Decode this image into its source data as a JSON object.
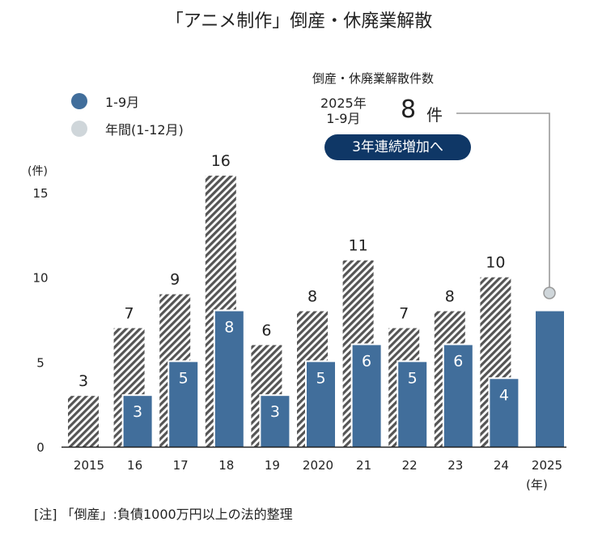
{
  "title": "「アニメ制作」倒産・休廃業解散",
  "legend": [
    {
      "label": "1-9月",
      "color": "#416e9b"
    },
    {
      "label": "年間(1-12月)",
      "color": "#cfd6da"
    }
  ],
  "callout": {
    "title": "倒産・休廃業解散件数",
    "period_line1": "2025年",
    "period_line2": "1-9月",
    "value": "8",
    "unit": "件",
    "badge": "3年連続増加へ",
    "badge_color": "#0f3766"
  },
  "note": "[注] 「倒産」:負債1000万円以上の法的整理",
  "chart_data": {
    "type": "bar",
    "title": "「アニメ制作」倒産・休廃業解散",
    "ylabel": "(件)",
    "xlabel": "(年)",
    "ylim": [
      0,
      15
    ],
    "yticks": [
      "0",
      "5",
      "10",
      "15"
    ],
    "categories": [
      "2015",
      "16",
      "17",
      "18",
      "19",
      "2020",
      "21",
      "22",
      "23",
      "24",
      "2025"
    ],
    "grid": false,
    "legend_position": "top-left",
    "series": [
      {
        "name": "年間(1-12月)",
        "style": "hatched",
        "values": [
          3,
          7,
          9,
          16,
          6,
          8,
          11,
          7,
          8,
          10,
          null
        ]
      },
      {
        "name": "1-9月",
        "color": "#416e9b",
        "values": [
          null,
          3,
          5,
          8,
          3,
          5,
          6,
          5,
          6,
          4,
          8
        ]
      }
    ]
  }
}
